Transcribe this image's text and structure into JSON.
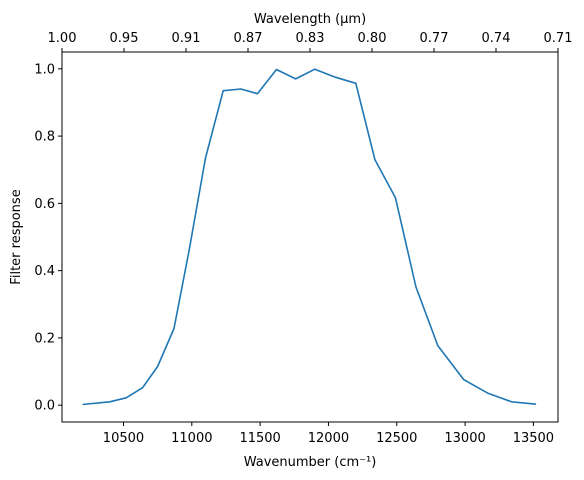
{
  "chart_data": {
    "type": "line",
    "xlabel": "Wavenumber (cm⁻¹)",
    "x2label": "Wavelength (μm)",
    "ylabel": "Filter response",
    "xlim": [
      10050,
      13680
    ],
    "ylim": [
      -0.05,
      1.05
    ],
    "xticks": [
      10500,
      11000,
      11500,
      12000,
      12500,
      13000,
      13500
    ],
    "yticks": [
      0.0,
      0.2,
      0.4,
      0.6,
      0.8,
      1.0
    ],
    "yticklabels": [
      "0.0",
      "0.2",
      "0.4",
      "0.6",
      "0.8",
      "1.0"
    ],
    "x2ticks": [
      {
        "wavelength": 1.0,
        "label": "1.00"
      },
      {
        "wavelength": 0.95,
        "label": "0.95"
      },
      {
        "wavelength": 0.91,
        "label": "0.91"
      },
      {
        "wavelength": 0.87,
        "label": "0.87"
      },
      {
        "wavelength": 0.83,
        "label": "0.83"
      },
      {
        "wavelength": 0.8,
        "label": "0.80"
      },
      {
        "wavelength": 0.77,
        "label": "0.77"
      },
      {
        "wavelength": 0.74,
        "label": "0.74"
      },
      {
        "wavelength": 0.71,
        "label": "0.71"
      }
    ],
    "legend": "none",
    "grid": false,
    "series": [
      {
        "color": "#1f77b4",
        "x": [
          10200,
          10400,
          10520,
          10640,
          10750,
          10870,
          10980,
          11100,
          11230,
          11360,
          11480,
          11620,
          11760,
          11900,
          12050,
          12200,
          12340,
          12490,
          12640,
          12800,
          12990,
          13170,
          13340,
          13520
        ],
        "y": [
          0.002,
          0.01,
          0.022,
          0.052,
          0.115,
          0.228,
          0.46,
          0.735,
          0.935,
          0.94,
          0.926,
          0.998,
          0.97,
          0.999,
          0.975,
          0.957,
          0.73,
          0.617,
          0.352,
          0.177,
          0.076,
          0.035,
          0.01,
          0.003
        ]
      }
    ]
  }
}
